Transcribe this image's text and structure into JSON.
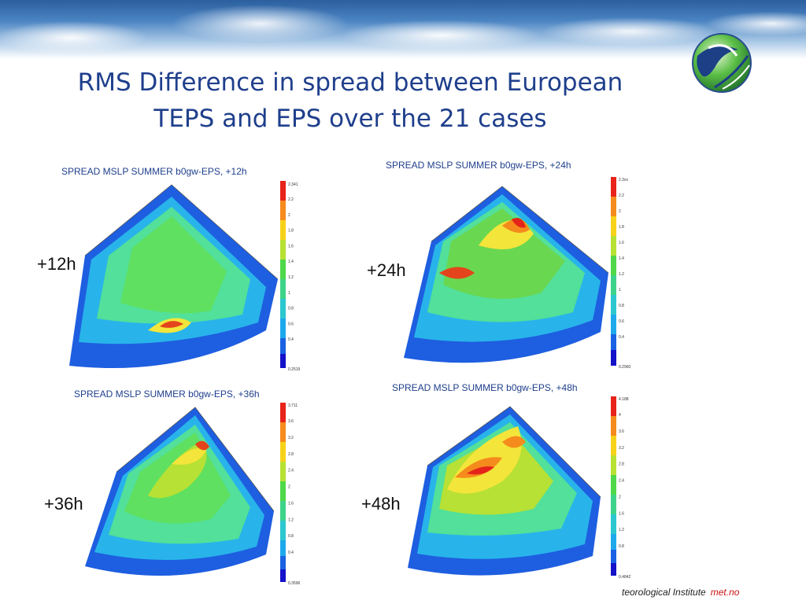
{
  "slide": {
    "title_line1": "RMS Difference in spread between European",
    "title_line2": "TEPS and EPS over the 21 cases",
    "footer_text": "teorological Institute",
    "footer_brand": "met.no"
  },
  "panels": [
    {
      "label": "+12h",
      "map_title": "SPREAD MSLP SUMMER b0gw-EPS, +12h",
      "cb_max": "2.341",
      "cb_min": "0.2519",
      "ticks": [
        "2.2",
        "2",
        "1.8",
        "1.6",
        "1.4",
        "1.2",
        "1",
        "0.8",
        "0.6",
        "0.4"
      ]
    },
    {
      "label": "+24h",
      "map_title": "SPREAD MSLP SUMMER b0gw-EPS, +24h",
      "cb_max": "2.3xx",
      "cb_min": "0.2960",
      "ticks": [
        "2.2",
        "2",
        "1.8",
        "1.6",
        "1.4",
        "1.2",
        "1",
        "0.8",
        "0.6",
        "0.4"
      ]
    },
    {
      "label": "+36h",
      "map_title": "SPREAD MSLP SUMMER b0gw-EPS, +36h",
      "cb_max": "3.711",
      "cb_min": "0.3596",
      "ticks": [
        "3.6",
        "3.2",
        "2.8",
        "2.4",
        "2",
        "1.6",
        "1.2",
        "0.8",
        "0.4"
      ]
    },
    {
      "label": "+48h",
      "map_title": "SPREAD MSLP SUMMER b0gw-EPS, +48h",
      "cb_max": "4.188",
      "cb_min": "0.4842",
      "ticks": [
        "4",
        "3.6",
        "3.2",
        "2.8",
        "2.4",
        "2",
        "1.6",
        "1.2",
        "0.8"
      ]
    }
  ],
  "colors": {
    "title": "#1f3f8c",
    "map_title": "#1f3f8c",
    "footer_brand": "#cc1111"
  },
  "icons": {
    "logo": "met-institute-globe-logo"
  }
}
